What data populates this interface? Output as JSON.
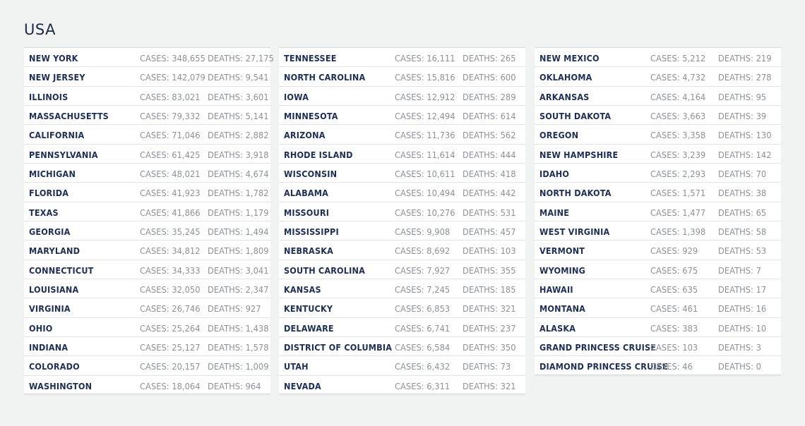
{
  "title": "USA",
  "columns": [
    {
      "rows": [
        {
          "state": "NEW YORK",
          "cases": "CASES: 348,655",
          "deaths": "DEATHS: 27,175"
        },
        {
          "state": "NEW JERSEY",
          "cases": "CASES: 142,079",
          "deaths": "DEATHS: 9,541"
        },
        {
          "state": "ILLINOIS",
          "cases": "CASES: 83,021",
          "deaths": "DEATHS: 3,601"
        },
        {
          "state": "MASSACHUSETTS",
          "cases": "CASES: 79,332",
          "deaths": "DEATHS: 5,141"
        },
        {
          "state": "CALIFORNIA",
          "cases": "CASES: 71,046",
          "deaths": "DEATHS: 2,882"
        },
        {
          "state": "PENNSYLVANIA",
          "cases": "CASES: 61,425",
          "deaths": "DEATHS: 3,918"
        },
        {
          "state": "MICHIGAN",
          "cases": "CASES: 48,021",
          "deaths": "DEATHS: 4,674"
        },
        {
          "state": "FLORIDA",
          "cases": "CASES: 41,923",
          "deaths": "DEATHS: 1,782"
        },
        {
          "state": "TEXAS",
          "cases": "CASES: 41,866",
          "deaths": "DEATHS: 1,179"
        },
        {
          "state": "GEORGIA",
          "cases": "CASES: 35,245",
          "deaths": "DEATHS: 1,494"
        },
        {
          "state": "MARYLAND",
          "cases": "CASES: 34,812",
          "deaths": "DEATHS: 1,809"
        },
        {
          "state": "CONNECTICUT",
          "cases": "CASES: 34,333",
          "deaths": "DEATHS: 3,041"
        },
        {
          "state": "LOUISIANA",
          "cases": "CASES: 32,050",
          "deaths": "DEATHS: 2,347"
        },
        {
          "state": "VIRGINIA",
          "cases": "CASES: 26,746",
          "deaths": "DEATHS: 927"
        },
        {
          "state": "OHIO",
          "cases": "CASES: 25,264",
          "deaths": "DEATHS: 1,438"
        },
        {
          "state": "INDIANA",
          "cases": "CASES: 25,127",
          "deaths": "DEATHS: 1,578"
        },
        {
          "state": "COLORADO",
          "cases": "CASES: 20,157",
          "deaths": "DEATHS: 1,009"
        },
        {
          "state": "WASHINGTON",
          "cases": "CASES: 18,064",
          "deaths": "DEATHS: 964"
        }
      ]
    },
    {
      "rows": [
        {
          "state": "TENNESSEE",
          "cases": "CASES: 16,111",
          "deaths": "DEATHS: 265"
        },
        {
          "state": "NORTH CAROLINA",
          "cases": "CASES: 15,816",
          "deaths": "DEATHS: 600"
        },
        {
          "state": "IOWA",
          "cases": "CASES: 12,912",
          "deaths": "DEATHS: 289"
        },
        {
          "state": "MINNESOTA",
          "cases": "CASES: 12,494",
          "deaths": "DEATHS: 614"
        },
        {
          "state": "ARIZONA",
          "cases": "CASES: 11,736",
          "deaths": "DEATHS: 562"
        },
        {
          "state": "RHODE ISLAND",
          "cases": "CASES: 11,614",
          "deaths": "DEATHS: 444"
        },
        {
          "state": "WISCONSIN",
          "cases": "CASES: 10,611",
          "deaths": "DEATHS: 418"
        },
        {
          "state": "ALABAMA",
          "cases": "CASES: 10,494",
          "deaths": "DEATHS: 442"
        },
        {
          "state": "MISSOURI",
          "cases": "CASES: 10,276",
          "deaths": "DEATHS: 531"
        },
        {
          "state": "MISSISSIPPI",
          "cases": "CASES: 9,908",
          "deaths": "DEATHS: 457"
        },
        {
          "state": "NEBRASKA",
          "cases": "CASES: 8,692",
          "deaths": "DEATHS: 103"
        },
        {
          "state": "SOUTH CAROLINA",
          "cases": "CASES: 7,927",
          "deaths": "DEATHS: 355"
        },
        {
          "state": "KANSAS",
          "cases": "CASES: 7,245",
          "deaths": "DEATHS: 185"
        },
        {
          "state": "KENTUCKY",
          "cases": "CASES: 6,853",
          "deaths": "DEATHS: 321"
        },
        {
          "state": "DELAWARE",
          "cases": "CASES: 6,741",
          "deaths": "DEATHS: 237"
        },
        {
          "state": "DISTRICT OF COLUMBIA",
          "cases": "CASES: 6,584",
          "deaths": "DEATHS: 350"
        },
        {
          "state": "UTAH",
          "cases": "CASES: 6,432",
          "deaths": "DEATHS: 73"
        },
        {
          "state": "NEVADA",
          "cases": "CASES: 6,311",
          "deaths": "DEATHS: 321"
        }
      ]
    },
    {
      "rows": [
        {
          "state": "NEW MEXICO",
          "cases": "CASES: 5,212",
          "deaths": "DEATHS: 219"
        },
        {
          "state": "OKLAHOMA",
          "cases": "CASES: 4,732",
          "deaths": "DEATHS: 278"
        },
        {
          "state": "ARKANSAS",
          "cases": "CASES: 4,164",
          "deaths": "DEATHS: 95"
        },
        {
          "state": "SOUTH DAKOTA",
          "cases": "CASES: 3,663",
          "deaths": "DEATHS: 39"
        },
        {
          "state": "OREGON",
          "cases": "CASES: 3,358",
          "deaths": "DEATHS: 130"
        },
        {
          "state": "NEW HAMPSHIRE",
          "cases": "CASES: 3,239",
          "deaths": "DEATHS: 142"
        },
        {
          "state": "IDAHO",
          "cases": "CASES: 2,293",
          "deaths": "DEATHS: 70"
        },
        {
          "state": "NORTH DAKOTA",
          "cases": "CASES: 1,571",
          "deaths": "DEATHS: 38"
        },
        {
          "state": "MAINE",
          "cases": "CASES: 1,477",
          "deaths": "DEATHS: 65"
        },
        {
          "state": "WEST VIRGINIA",
          "cases": "CASES: 1,398",
          "deaths": "DEATHS: 58"
        },
        {
          "state": "VERMONT",
          "cases": "CASES: 929",
          "deaths": "DEATHS: 53"
        },
        {
          "state": "WYOMING",
          "cases": "CASES: 675",
          "deaths": "DEATHS: 7"
        },
        {
          "state": "HAWAII",
          "cases": "CASES: 635",
          "deaths": "DEATHS: 17"
        },
        {
          "state": "MONTANA",
          "cases": "CASES: 461",
          "deaths": "DEATHS: 16"
        },
        {
          "state": "ALASKA",
          "cases": "CASES: 383",
          "deaths": "DEATHS: 10"
        },
        {
          "state": "GRAND PRINCESS CRUISE",
          "cases": "CASES: 103",
          "deaths": "DEATHS: 3"
        },
        {
          "state": "DIAMOND PRINCESS CRUISE",
          "cases": "CASES: 46",
          "deaths": "DEATHS: 0"
        }
      ]
    }
  ]
}
